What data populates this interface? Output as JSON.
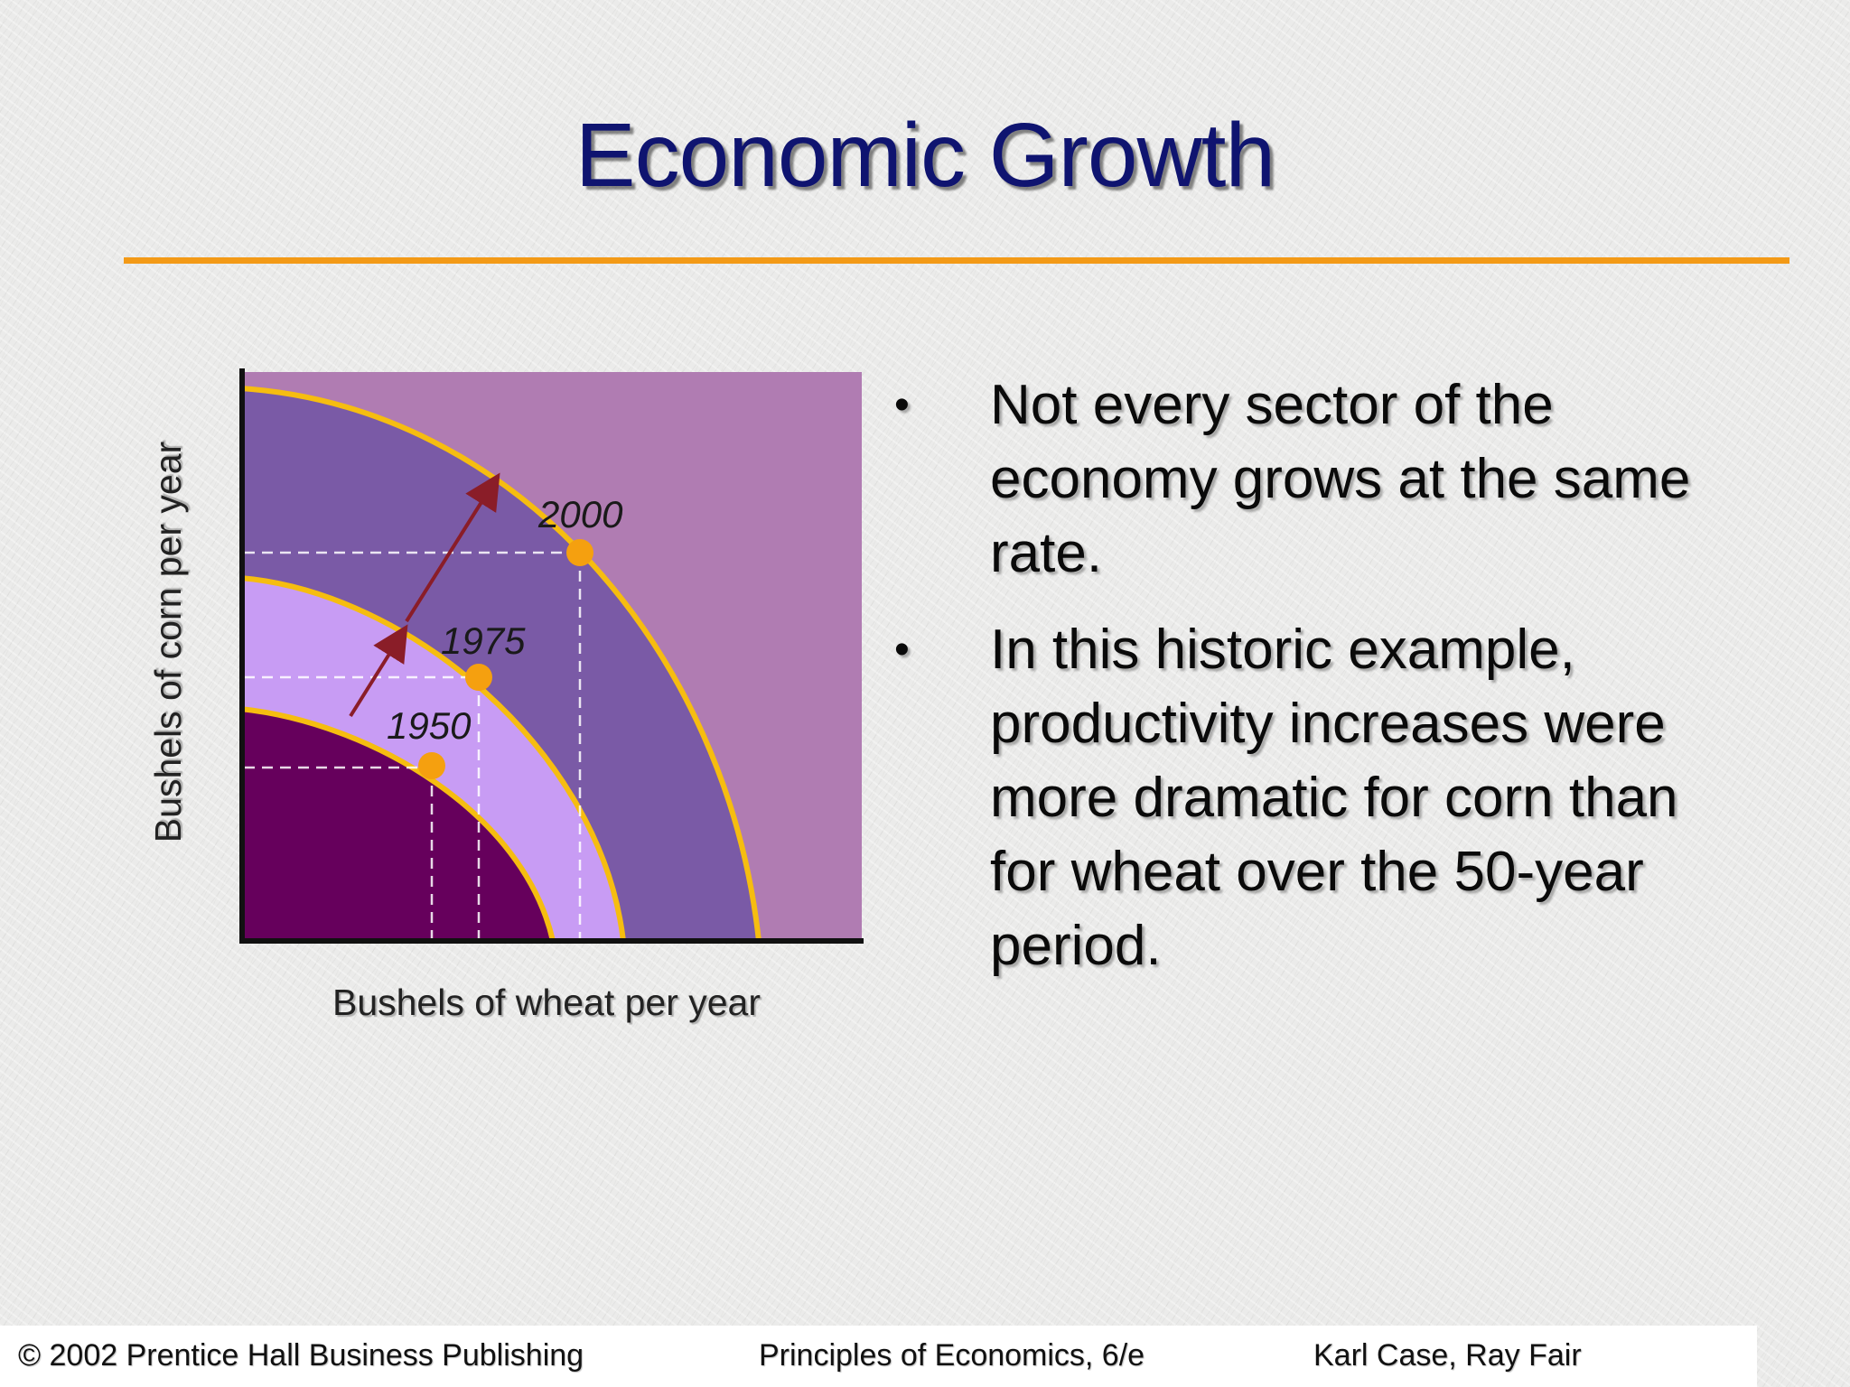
{
  "slide": {
    "title": "Economic Growth",
    "accent_color": "#f39a17",
    "title_color": "#0f1470"
  },
  "figure": {
    "x_label": "Bushels of wheat per year",
    "y_label": "Bushels of corn per year",
    "frontiers": [
      {
        "year": "1950",
        "fill": "#66005c"
      },
      {
        "year": "1975",
        "fill": "#c89cf4"
      },
      {
        "year": "2000",
        "fill": "#7a5aa6"
      }
    ],
    "outer_fill": "#b07cb2",
    "curve_color": "#f6bd10",
    "point_color": "#f5a00f",
    "arrow_color": "#8a1d28"
  },
  "bullets": [
    {
      "text": "Not every sector of the economy grows at the same rate."
    },
    {
      "text": "In this historic example, productivity increases were more dramatic for corn than for wheat over the 50-year period."
    }
  ],
  "footer": {
    "publisher": "© 2002 Prentice Hall Business Publishing",
    "book": "Principles of Economics, 6/e",
    "authors": "Karl Case, Ray Fair"
  }
}
